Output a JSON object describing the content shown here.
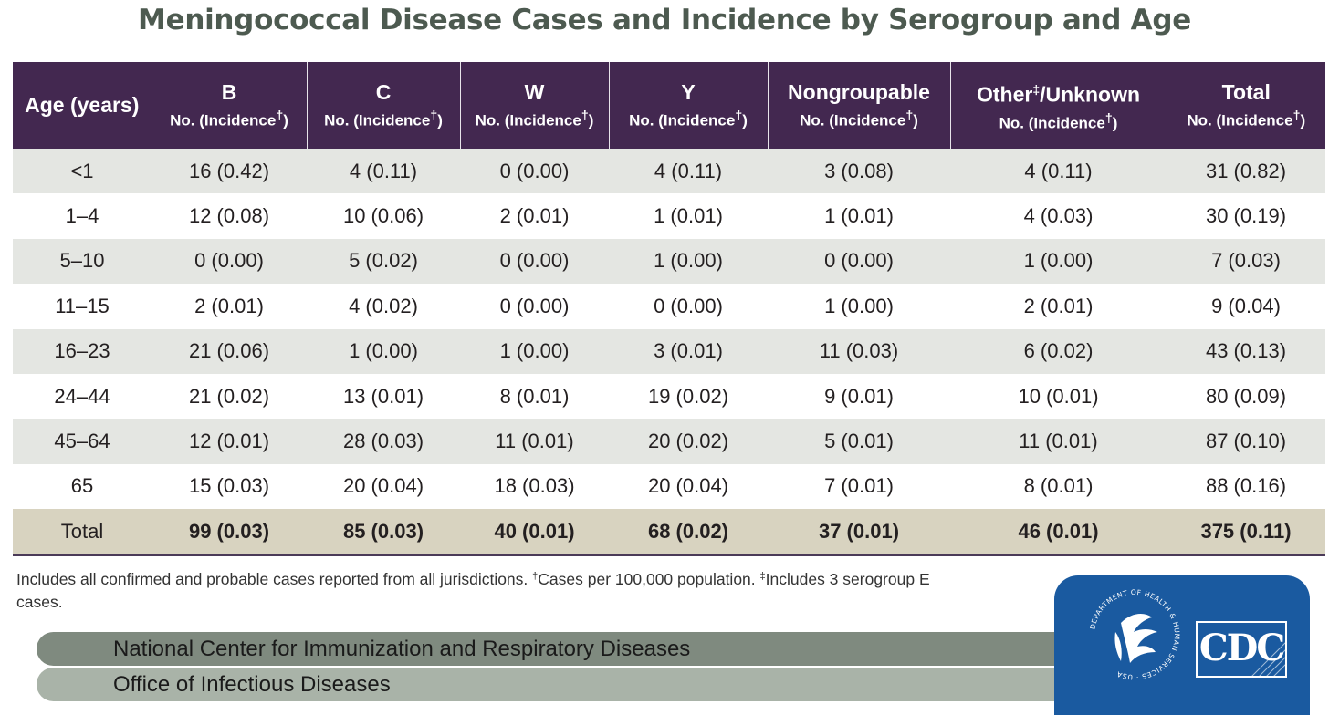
{
  "title": "Meningococcal Disease Cases and Incidence by Serogroup and Age",
  "table": {
    "age_header": "Age (years)",
    "columns": [
      {
        "name": "B",
        "sub_prefix": "No. (Incidence",
        "sub_mark": "†",
        "sub_suffix": ")"
      },
      {
        "name": "C",
        "sub_prefix": "No. (Incidence",
        "sub_mark": "†",
        "sub_suffix": ")"
      },
      {
        "name": "W",
        "sub_prefix": "No. (Incidence",
        "sub_mark": "†",
        "sub_suffix": ")"
      },
      {
        "name": "Y",
        "sub_prefix": "No. (Incidence",
        "sub_mark": "†",
        "sub_suffix": ")"
      },
      {
        "name": "Nongroupable",
        "sub_prefix": "No. (Incidence",
        "sub_mark": "†",
        "sub_suffix": ")"
      },
      {
        "name": "Other",
        "name_mark": "‡",
        "name_suffix": "/Unknown",
        "sub_prefix": "No. (Incidence",
        "sub_mark": "†",
        "sub_suffix": ")"
      },
      {
        "name": "Total",
        "sub_prefix": "No. (Incidence",
        "sub_mark": "†",
        "sub_suffix": ")"
      }
    ],
    "rows": [
      {
        "age": "<1",
        "cells": [
          "16 (0.42)",
          "4 (0.11)",
          "0 (0.00)",
          "4 (0.11)",
          "3 (0.08)",
          "4 (0.11)",
          "31 (0.82)"
        ]
      },
      {
        "age": "1–4",
        "cells": [
          "12 (0.08)",
          "10 (0.06)",
          "2 (0.01)",
          "1 (0.01)",
          "1 (0.01)",
          "4 (0.03)",
          "30 (0.19)"
        ]
      },
      {
        "age": "5–10",
        "cells": [
          "0 (0.00)",
          "5 (0.02)",
          "0 (0.00)",
          "1 (0.00)",
          "0 (0.00)",
          "1 (0.00)",
          "7 (0.03)"
        ]
      },
      {
        "age": "11–15",
        "cells": [
          "2 (0.01)",
          "4 (0.02)",
          "0 (0.00)",
          "0 (0.00)",
          "1 (0.00)",
          "2 (0.01)",
          "9 (0.04)"
        ]
      },
      {
        "age": "16–23",
        "cells": [
          "21 (0.06)",
          "1 (0.00)",
          "1 (0.00)",
          "3 (0.01)",
          "11 (0.03)",
          "6 (0.02)",
          "43 (0.13)"
        ]
      },
      {
        "age": "24–44",
        "cells": [
          "21 (0.02)",
          "13 (0.01)",
          "8 (0.01)",
          "19 (0.02)",
          "9 (0.01)",
          "10 (0.01)",
          "80 (0.09)"
        ]
      },
      {
        "age": "45–64",
        "cells": [
          "12 (0.01)",
          "28 (0.03)",
          "11 (0.01)",
          "20 (0.02)",
          "5 (0.01)",
          "11 (0.01)",
          "87 (0.10)"
        ]
      },
      {
        "age": "65",
        "cells": [
          "15 (0.03)",
          "20 (0.04)",
          "18 (0.03)",
          "20 (0.04)",
          "7 (0.01)",
          "8 (0.01)",
          "88 (0.16)"
        ]
      }
    ],
    "total_row": {
      "age": "Total",
      "cells": [
        "99 (0.03)",
        "85 (0.03)",
        "40 (0.01)",
        "68 (0.02)",
        "37 (0.01)",
        "46 (0.01)",
        "375 (0.11)"
      ]
    }
  },
  "footnote": {
    "part1": "Includes all confirmed and probable cases reported from all jurisdictions. ",
    "mark1": "†",
    "part2": "Cases per 100,000 population. ",
    "mark2": "‡",
    "part3": "Includes 3 serogroup E cases."
  },
  "bands": {
    "line1": "National Center for Immunization and Respiratory Diseases",
    "line2": "Office of Infectious Diseases"
  },
  "logo": {
    "cdc": "CDC",
    "hhs_seal_text": "DEPARTMENT OF HEALTH & HUMAN SERVICES · USA",
    "colors": {
      "logo_blue": "#1a5aa0",
      "header_purple": "#432850",
      "title_green": "#4d5a50"
    }
  }
}
